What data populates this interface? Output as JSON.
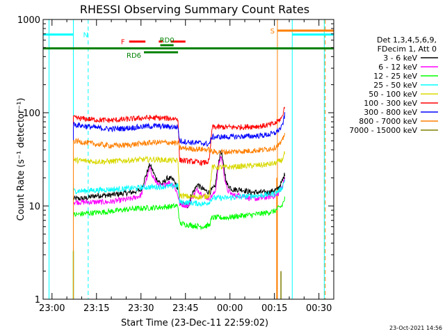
{
  "chart_data": {
    "type": "line",
    "title": "RHESSI Observing Summary Count Rates",
    "xlabel": "Start Time (23-Dec-11 22:59:02)",
    "ylabel": "Count Rate (s⁻¹ detector⁻¹)",
    "yscale": "log",
    "xlim_minutes": [
      -2,
      96
    ],
    "ylim": [
      1,
      1000
    ],
    "x_ticks": [
      {
        "label": "23:00",
        "min": 1
      },
      {
        "label": "23:15",
        "min": 16
      },
      {
        "label": "23:30",
        "min": 31
      },
      {
        "label": "23:45",
        "min": 46
      },
      {
        "label": "00:00",
        "min": 61
      },
      {
        "label": "00:15",
        "min": 76
      },
      {
        "label": "00:30",
        "min": 91
      }
    ],
    "y_ticks": [
      {
        "label": "1",
        "value": 1
      },
      {
        "label": "10",
        "value": 10
      },
      {
        "label": "100",
        "value": 100
      },
      {
        "label": "1000",
        "value": 1000
      }
    ],
    "legend_header": [
      "Det 1,3,4,5,6,9,",
      "FDecim 1, Att 0"
    ],
    "legend_position": "right",
    "timestamp": "23-Oct-2021 14:56",
    "series": [
      {
        "name": "3 - 6 keV",
        "color": "#000000",
        "pts": [
          [
            8.2,
            12
          ],
          [
            12,
            12
          ],
          [
            16,
            13
          ],
          [
            20,
            13
          ],
          [
            24,
            13.5
          ],
          [
            28,
            14
          ],
          [
            31,
            15
          ],
          [
            34,
            28
          ],
          [
            36,
            20
          ],
          [
            38,
            17
          ],
          [
            40,
            20
          ],
          [
            42,
            19
          ],
          [
            43.5,
            15
          ],
          [
            44,
            11
          ],
          [
            47,
            10
          ],
          [
            48,
            13
          ],
          [
            50,
            17
          ],
          [
            52,
            15
          ],
          [
            54,
            14
          ],
          [
            56,
            16
          ],
          [
            57,
            28
          ],
          [
            58,
            40
          ],
          [
            59,
            25
          ],
          [
            60,
            17
          ],
          [
            62,
            15
          ],
          [
            65,
            15
          ],
          [
            68,
            14
          ],
          [
            71,
            14
          ],
          [
            74,
            14
          ],
          [
            77,
            15
          ],
          [
            78.5,
            18
          ],
          [
            79.5,
            22
          ]
        ]
      },
      {
        "name": "6 - 12 keV",
        "color": "#ff00ff",
        "pts": [
          [
            8.2,
            11
          ],
          [
            12,
            11
          ],
          [
            16,
            11
          ],
          [
            20,
            11
          ],
          [
            24,
            11.5
          ],
          [
            28,
            12
          ],
          [
            31,
            13
          ],
          [
            34,
            25
          ],
          [
            36,
            18
          ],
          [
            38,
            16
          ],
          [
            40,
            18
          ],
          [
            42,
            17
          ],
          [
            43.5,
            13
          ],
          [
            44,
            10.5
          ],
          [
            47,
            10
          ],
          [
            48,
            12
          ],
          [
            50,
            15
          ],
          [
            52,
            13
          ],
          [
            54,
            12
          ],
          [
            56,
            14
          ],
          [
            57,
            25
          ],
          [
            58,
            35
          ],
          [
            59,
            22
          ],
          [
            60,
            15
          ],
          [
            62,
            13
          ],
          [
            65,
            13
          ],
          [
            68,
            12
          ],
          [
            71,
            12
          ],
          [
            74,
            12.5
          ],
          [
            77,
            13
          ],
          [
            78.5,
            16
          ],
          [
            79.5,
            20
          ]
        ]
      },
      {
        "name": "12 - 25 keV",
        "color": "#00ff00",
        "pts": [
          [
            8.2,
            8
          ],
          [
            12,
            8.3
          ],
          [
            16,
            8.5
          ],
          [
            20,
            8.7
          ],
          [
            24,
            9
          ],
          [
            28,
            9.3
          ],
          [
            32,
            9.5
          ],
          [
            36,
            9.6
          ],
          [
            40,
            9.8
          ],
          [
            43.5,
            10
          ],
          [
            44,
            6.5
          ],
          [
            48,
            6.2
          ],
          [
            52,
            6
          ],
          [
            54,
            6.2
          ],
          [
            55,
            7.5
          ],
          [
            60,
            7.5
          ],
          [
            64,
            7.8
          ],
          [
            68,
            8
          ],
          [
            72,
            8.3
          ],
          [
            76,
            8.8
          ],
          [
            78.5,
            10
          ],
          [
            79.5,
            12
          ]
        ]
      },
      {
        "name": "25 - 50 keV",
        "color": "#00ffff",
        "pts": [
          [
            8.2,
            14.5
          ],
          [
            12,
            14.5
          ],
          [
            16,
            14.8
          ],
          [
            20,
            15
          ],
          [
            24,
            15.2
          ],
          [
            28,
            15.5
          ],
          [
            32,
            15.8
          ],
          [
            36,
            16
          ],
          [
            40,
            16.2
          ],
          [
            43.5,
            16.5
          ],
          [
            44,
            11
          ],
          [
            48,
            10.8
          ],
          [
            52,
            10.5
          ],
          [
            54,
            11
          ],
          [
            55,
            12.2
          ],
          [
            60,
            12.2
          ],
          [
            64,
            12.5
          ],
          [
            68,
            12.8
          ],
          [
            72,
            13
          ],
          [
            76,
            13.5
          ],
          [
            78.5,
            15.5
          ],
          [
            79.5,
            19
          ]
        ]
      },
      {
        "name": "50 - 100 keV",
        "color": "#d8d800",
        "pts": [
          [
            8.2,
            31
          ],
          [
            12,
            30.5
          ],
          [
            16,
            30
          ],
          [
            20,
            30
          ],
          [
            24,
            30.5
          ],
          [
            28,
            31
          ],
          [
            32,
            31.5
          ],
          [
            36,
            31.5
          ],
          [
            40,
            31
          ],
          [
            43.5,
            30.5
          ],
          [
            44,
            13
          ],
          [
            48,
            12.5
          ],
          [
            52,
            12.5
          ],
          [
            54,
            13
          ],
          [
            55,
            26
          ],
          [
            60,
            26
          ],
          [
            64,
            26.5
          ],
          [
            68,
            27
          ],
          [
            72,
            27.5
          ],
          [
            76,
            28.5
          ],
          [
            78.5,
            31
          ],
          [
            79.5,
            37
          ]
        ]
      },
      {
        "name": "100 - 300 keV",
        "color": "#ff0000",
        "pts": [
          [
            8.2,
            88
          ],
          [
            12,
            86
          ],
          [
            16,
            84
          ],
          [
            20,
            83
          ],
          [
            24,
            84
          ],
          [
            28,
            86
          ],
          [
            32,
            88
          ],
          [
            36,
            88
          ],
          [
            40,
            87
          ],
          [
            43.5,
            86
          ],
          [
            44,
            31
          ],
          [
            48,
            30
          ],
          [
            52,
            29
          ],
          [
            54,
            30
          ],
          [
            55,
            70
          ],
          [
            60,
            70
          ],
          [
            64,
            70
          ],
          [
            68,
            71
          ],
          [
            72,
            72
          ],
          [
            76,
            76
          ],
          [
            78.5,
            88
          ],
          [
            79.5,
            118
          ]
        ]
      },
      {
        "name": "300 - 800 keV",
        "color": "#0000ff",
        "pts": [
          [
            8.2,
            75
          ],
          [
            12,
            72
          ],
          [
            16,
            69
          ],
          [
            20,
            67
          ],
          [
            24,
            67.5
          ],
          [
            28,
            69
          ],
          [
            32,
            71
          ],
          [
            36,
            72
          ],
          [
            40,
            71
          ],
          [
            43.5,
            70
          ],
          [
            44,
            50
          ],
          [
            48,
            48
          ],
          [
            52,
            47
          ],
          [
            54,
            46
          ],
          [
            55,
            55
          ],
          [
            60,
            55
          ],
          [
            64,
            55.5
          ],
          [
            68,
            56
          ],
          [
            72,
            57
          ],
          [
            76,
            60
          ],
          [
            78.5,
            70
          ],
          [
            79.5,
            95
          ]
        ]
      },
      {
        "name": "800 - 7000 keV",
        "color": "#ff7f00",
        "pts": [
          [
            8.2,
            50
          ],
          [
            12,
            48
          ],
          [
            16,
            46
          ],
          [
            20,
            44.5
          ],
          [
            24,
            44.5
          ],
          [
            28,
            45.5
          ],
          [
            32,
            47
          ],
          [
            36,
            48
          ],
          [
            40,
            48
          ],
          [
            43.5,
            47
          ],
          [
            44,
            42
          ],
          [
            48,
            41
          ],
          [
            52,
            40.5
          ],
          [
            54,
            40
          ],
          [
            55,
            38
          ],
          [
            60,
            38
          ],
          [
            64,
            38.5
          ],
          [
            68,
            39
          ],
          [
            72,
            40
          ],
          [
            76,
            42
          ],
          [
            78.5,
            48
          ],
          [
            79.5,
            62
          ]
        ]
      },
      {
        "name": "7000 - 15000 keV",
        "color": "#7f7f00",
        "pts": []
      }
    ],
    "flags": [
      {
        "label": "N",
        "color": "#00ffff",
        "segments": [
          [
            -2,
            8.2,
            690
          ],
          [
            82,
            89,
            690
          ],
          [
            89,
            96,
            690
          ]
        ]
      },
      {
        "label": "S",
        "color": "#ff7f00",
        "segments": [
          [
            77,
            96,
            760
          ]
        ]
      },
      {
        "label": "F",
        "color": "#ff0000",
        "segments": [
          [
            27,
            32.5,
            580
          ],
          [
            37,
            38.3,
            580
          ],
          [
            41,
            46,
            580
          ]
        ]
      },
      {
        "label": "RD0",
        "color": "#008000",
        "segments": [
          [
            37.5,
            42,
            530
          ]
        ]
      },
      {
        "label": "RD6",
        "color": "#008000",
        "segments": [
          [
            32,
            43.5,
            445
          ]
        ]
      }
    ],
    "long_flag_line": {
      "color": "#008000",
      "value": 490,
      "from": -2,
      "to": 96
    },
    "markers": [
      {
        "min": 0,
        "color": "#00ffff",
        "dash": false
      },
      {
        "min": 8.2,
        "color": "#00ffff",
        "dash": false
      },
      {
        "min": 13.2,
        "color": "#00ffff",
        "dash": true
      },
      {
        "min": 77,
        "color": "#ff7f00",
        "dash": false
      },
      {
        "min": 82,
        "color": "#00ffff",
        "dash": false
      },
      {
        "min": 92.8,
        "color": "#00ffff",
        "dash": false
      },
      {
        "min": 93.1,
        "color": "#ff7f00",
        "dash": true
      }
    ],
    "spikes": [
      {
        "min": 78.2,
        "from": 1,
        "to": 2,
        "color": "#7f7f00"
      },
      {
        "min": 8.2,
        "from": 1,
        "to": 3.3,
        "color": "#00ff00"
      },
      {
        "min": 76.8,
        "from": 1,
        "to": 20,
        "color": "#ff7f00"
      }
    ]
  }
}
